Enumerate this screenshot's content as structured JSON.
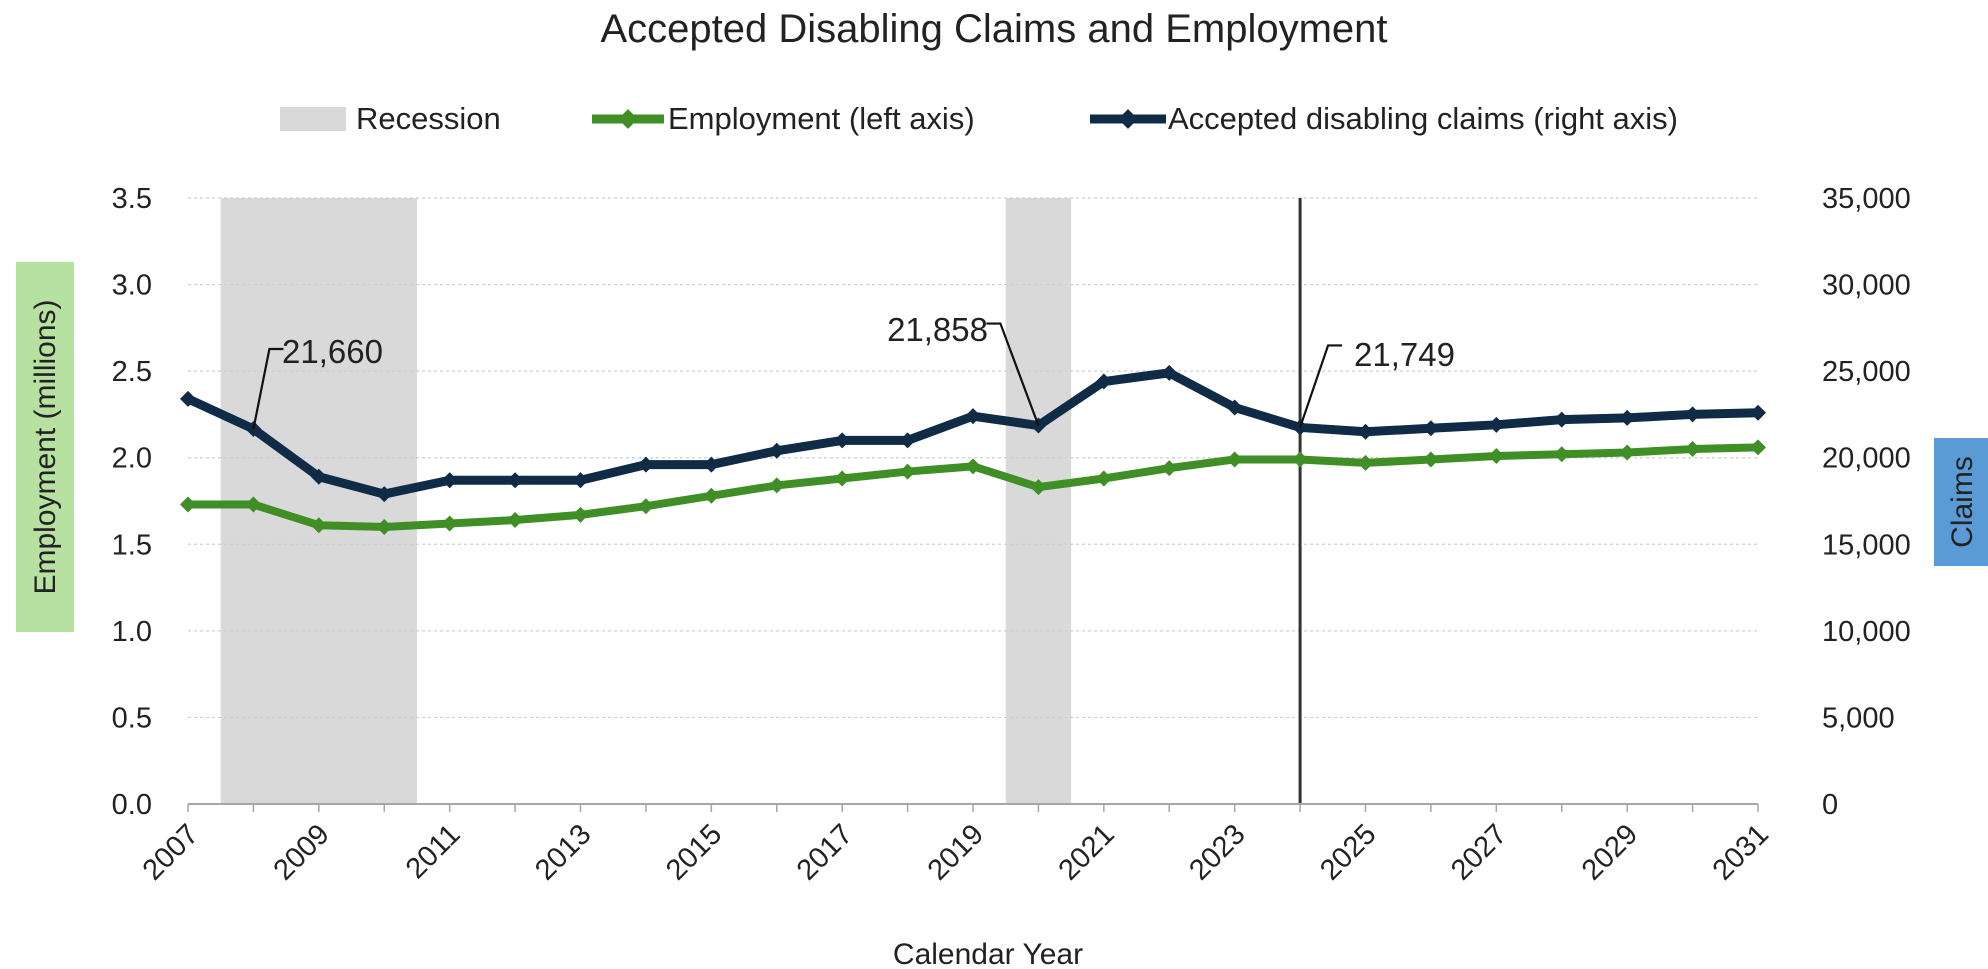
{
  "chart_data": {
    "type": "line",
    "title": "Accepted Disabling Claims and Employment",
    "xlabel": "Calendar Year",
    "ylabel_left": "Employment (millions)",
    "ylabel_right": "Claims",
    "ylabel_left_bg": "#b7e1a1",
    "ylabel_right_bg": "#5b9bd5",
    "x": [
      2007,
      2008,
      2009,
      2010,
      2011,
      2012,
      2013,
      2014,
      2015,
      2016,
      2017,
      2018,
      2019,
      2020,
      2021,
      2022,
      2023,
      2024,
      2025,
      2026,
      2027,
      2028,
      2029,
      2030,
      2031
    ],
    "x_tick_labels": [
      "2007",
      "2009",
      "2011",
      "2013",
      "2015",
      "2017",
      "2019",
      "2021",
      "2023",
      "2025",
      "2027",
      "2029",
      "2031"
    ],
    "ylim_left": [
      0,
      3.5
    ],
    "y_ticks_left": [
      "0.0",
      "0.5",
      "1.0",
      "1.5",
      "2.0",
      "2.5",
      "3.0",
      "3.5"
    ],
    "ylim_right": [
      0,
      35000
    ],
    "y_ticks_right": [
      "0",
      "5,000",
      "10,000",
      "15,000",
      "20,000",
      "25,000",
      "30,000",
      "35,000"
    ],
    "grid": true,
    "legend_position": "top",
    "series": [
      {
        "name": "Employment (left axis)",
        "axis": "left",
        "color": "#3f8f26",
        "values": [
          1.73,
          1.73,
          1.61,
          1.6,
          1.62,
          1.64,
          1.67,
          1.72,
          1.78,
          1.84,
          1.88,
          1.92,
          1.95,
          1.83,
          1.88,
          1.94,
          1.99,
          1.99,
          1.97,
          1.99,
          2.01,
          2.02,
          2.03,
          2.05,
          2.06
        ]
      },
      {
        "name": "Accepted disabling claims (right axis)",
        "axis": "right",
        "color": "#0f2b46",
        "values": [
          23400,
          21660,
          18900,
          17900,
          18700,
          18700,
          18700,
          19600,
          19600,
          20400,
          21000,
          21000,
          22400,
          21858,
          24400,
          24900,
          22900,
          21749,
          21500,
          21700,
          21900,
          22200,
          22300,
          22500,
          22600
        ]
      }
    ],
    "recession": {
      "name": "Recession",
      "color": "#d9d9d9",
      "bands": [
        [
          2007.5,
          2010.5
        ],
        [
          2019.5,
          2020.5
        ]
      ]
    },
    "vertical_marker_x": 2024,
    "callouts": [
      {
        "x": 2008,
        "label": "21,660"
      },
      {
        "x": 2020,
        "label": "21,858"
      },
      {
        "x": 2024,
        "label": "21,749"
      }
    ]
  }
}
